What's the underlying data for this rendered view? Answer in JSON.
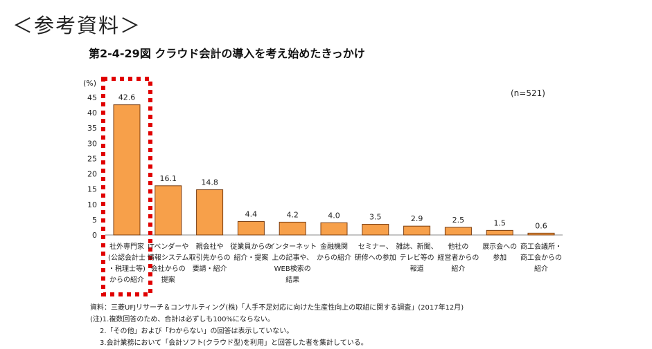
{
  "header": "＜参考資料＞",
  "chart_data": {
    "type": "bar",
    "title": "第2-4-29図 クラウド会計の導入を考え始めたきっかけ",
    "ylabel": "(%)",
    "ylim": [
      0,
      45
    ],
    "yticks": [
      0,
      5,
      10,
      15,
      20,
      25,
      30,
      35,
      40,
      45
    ],
    "annotation": "(n=521)",
    "bar_color": "#f7a04a",
    "highlight_color": "#e00000",
    "highlighted_category_index": 0,
    "categories": [
      "社外専門家\n(公認会計士\n・税理士等)\nからの紹介",
      "ITベンダーや\n情報システム\n会社からの\n提案",
      "親会社や\n取引先からの\n要請・紹介",
      "従業員からの\n紹介・提案",
      "インターネット\n上の記事や、\nWEB検索の\n結果",
      "金融機関\nからの紹介",
      "セミナー、\n研修への参加",
      "雑誌、新聞、\nテレビ等の\n報道",
      "他社の\n経営者からの\n紹介",
      "展示会への\n参加",
      "商工会議所・\n商工会からの\n紹介"
    ],
    "values": [
      42.6,
      16.1,
      14.8,
      4.4,
      4.2,
      4.0,
      3.5,
      2.9,
      2.5,
      1.5,
      0.6
    ],
    "value_labels": [
      "42.6",
      "16.1",
      "14.8",
      "4.4",
      "4.2",
      "4.0",
      "3.5",
      "2.9",
      "2.5",
      "1.5",
      "0.6"
    ]
  },
  "notes": [
    "資料：三菱UFJリサーチ＆コンサルティング(株)「人手不足対応に向けた生産性向上の取組に関する調査」(2017年12月)",
    "(注)1.複数回答のため、合計は必ずしも100%にならない。",
    "2.「その他」および「わからない」の回答は表示していない。",
    "3.会計業務において「会計ソフト(クラウド型)を利用」と回答した者を集計している。"
  ]
}
